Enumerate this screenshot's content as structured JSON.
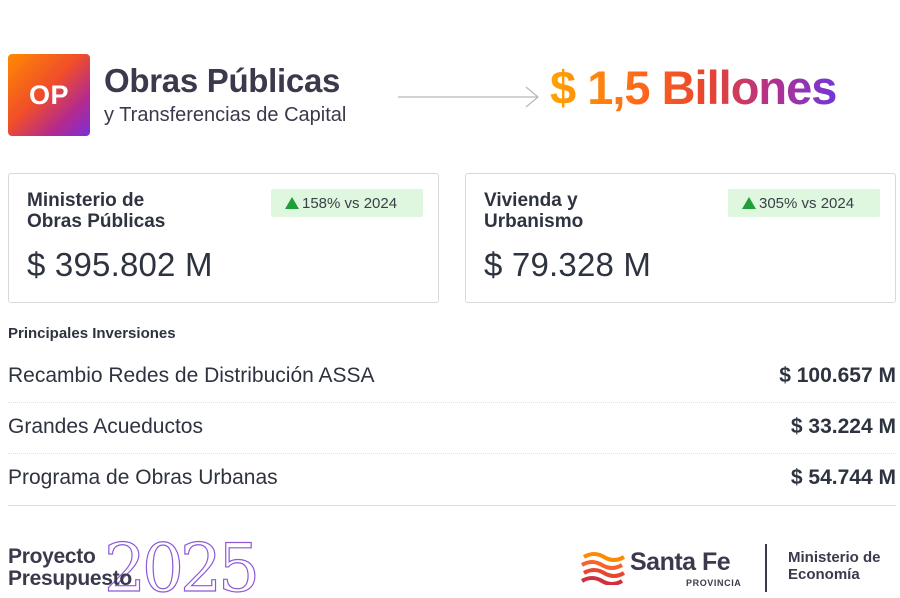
{
  "header": {
    "badge": "OP",
    "title": "Obras Públicas",
    "subtitle": "y Transferencias de Capital",
    "total": "$ 1,5 Billones"
  },
  "cards": [
    {
      "title_line1": "Ministerio de",
      "title_line2": "Obras Públicas",
      "change": "158% vs 2024",
      "value": "$ 395.802 M"
    },
    {
      "title_line1": "Vivienda y",
      "title_line2": "Urbanismo",
      "change": "305% vs 2024",
      "value": "$ 79.328 M"
    }
  ],
  "investments": {
    "title": "Principales Inversiones",
    "rows": [
      {
        "name": "Recambio Redes de Distribución ASSA",
        "value": "$ 100.657 M"
      },
      {
        "name": "Grandes Acueductos",
        "value": "$ 33.224 M"
      },
      {
        "name": "Programa de Obras Urbanas",
        "value": "$ 54.744 M"
      }
    ]
  },
  "footer": {
    "proyecto_line1": "Proyecto",
    "proyecto_line2": "Presupuesto",
    "year": "2025",
    "brand": "Santa Fe",
    "brand_sub": "PROVINCIA",
    "ministry_line1": "Ministerio de",
    "ministry_line2": "Economía"
  },
  "colors": {
    "up_arrow": "#1f9e3a",
    "badge_bg": "#dff7df",
    "text": "#2e3340"
  },
  "icons": {
    "up": "triangle-up-icon",
    "arrow": "arrow-right-icon",
    "logo": "santa-fe-logo-icon"
  }
}
